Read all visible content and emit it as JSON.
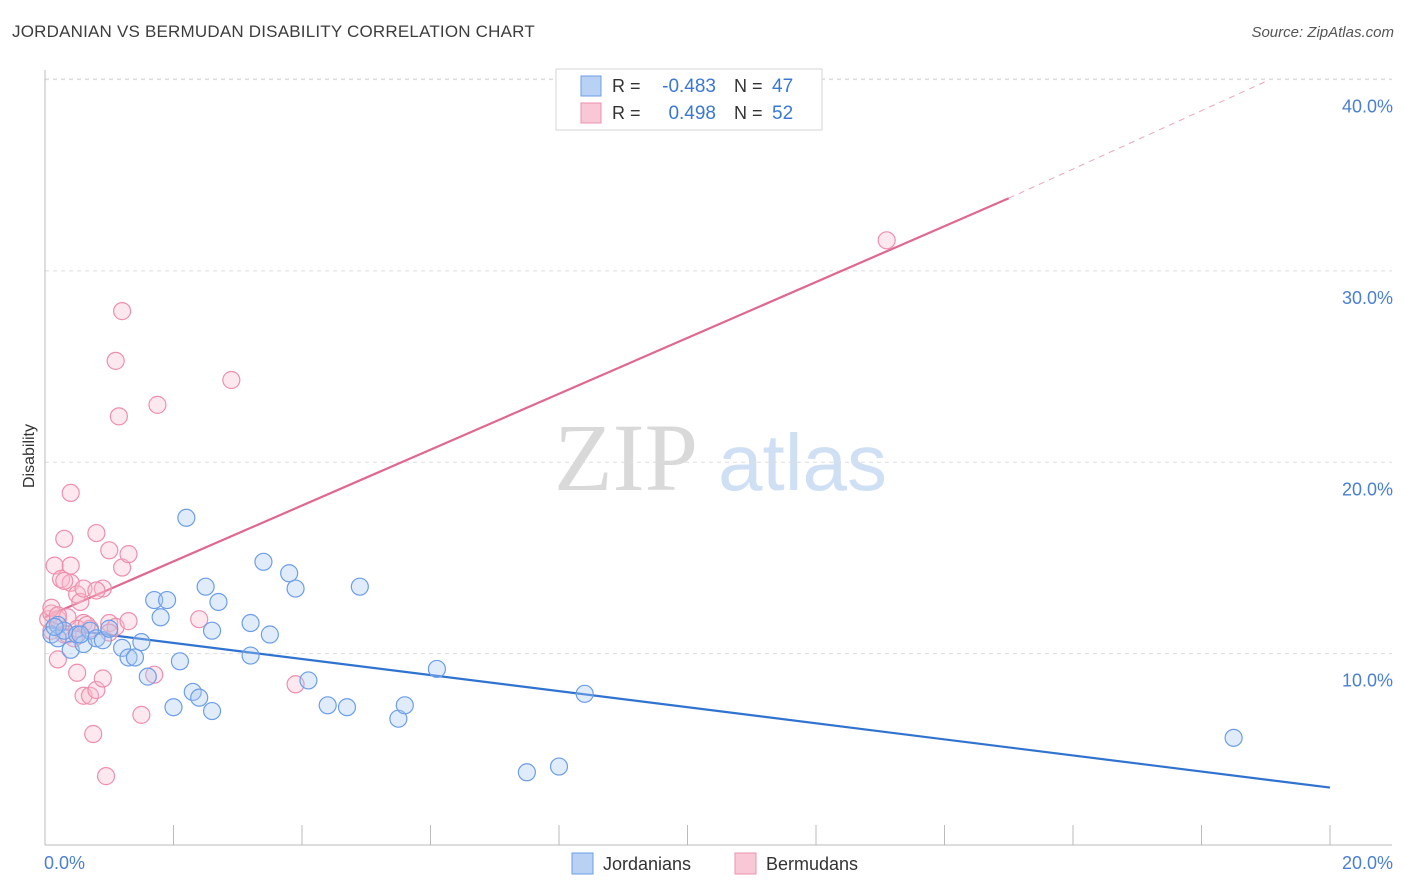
{
  "title": "JORDANIAN VS BERMUDAN DISABILITY CORRELATION CHART",
  "source": "Source: ZipAtlas.com",
  "watermark": {
    "zip": "ZIP",
    "atlas": "atlas"
  },
  "colors": {
    "blue": "#6c9ee8",
    "blue_fill": "#aac8f2",
    "blue_line": "#2f72d0",
    "pink": "#ee8fad",
    "pink_fill": "#f6bccd",
    "pink_line": "#e0688f",
    "axis_text": "#4a7fd1",
    "grid": "#dddddd"
  },
  "legend": {
    "rows": [
      {
        "r_label": "R = ",
        "r_value": "-0.483",
        "n_label": "N = ",
        "n_value": "47"
      },
      {
        "r_label": "R = ",
        "r_value": "0.498",
        "n_label": "N = ",
        "n_value": "52"
      }
    ]
  },
  "bottom_legend": [
    "Jordanians",
    "Bermudans"
  ],
  "chart_data": {
    "type": "scatter",
    "title": "JORDANIAN VS BERMUDAN DISABILITY CORRELATION CHART",
    "xlabel": "",
    "ylabel": "Disability",
    "xlim": [
      0,
      20
    ],
    "ylim": [
      0,
      40.5
    ],
    "x_tick_labels": [
      "0.0%",
      "20.0%"
    ],
    "y_ticks": [
      10,
      20,
      30,
      40
    ],
    "y_tick_labels": [
      "10.0%",
      "20.0%",
      "30.0%",
      "40.0%"
    ],
    "series": [
      {
        "name": "Jordanians",
        "r": -0.483,
        "n": 47,
        "trend": {
          "x0": 0,
          "y0": 11.4,
          "x1": 20,
          "y1": 3.0
        },
        "points": [
          [
            0.1,
            11.0
          ],
          [
            0.2,
            11.5
          ],
          [
            0.2,
            10.8
          ],
          [
            0.3,
            11.2
          ],
          [
            0.4,
            10.2
          ],
          [
            0.5,
            11.0
          ],
          [
            0.6,
            10.5
          ],
          [
            0.7,
            11.2
          ],
          [
            0.8,
            10.8
          ],
          [
            0.9,
            10.7
          ],
          [
            1.0,
            11.3
          ],
          [
            1.2,
            10.3
          ],
          [
            1.3,
            9.8
          ],
          [
            1.5,
            10.6
          ],
          [
            1.6,
            8.8
          ],
          [
            1.7,
            12.8
          ],
          [
            1.8,
            11.9
          ],
          [
            1.9,
            12.8
          ],
          [
            2.0,
            7.2
          ],
          [
            2.1,
            9.6
          ],
          [
            2.2,
            17.1
          ],
          [
            2.3,
            8.0
          ],
          [
            2.4,
            7.7
          ],
          [
            2.5,
            13.5
          ],
          [
            2.6,
            7.0
          ],
          [
            2.6,
            11.2
          ],
          [
            2.7,
            12.7
          ],
          [
            3.2,
            11.6
          ],
          [
            3.2,
            9.9
          ],
          [
            3.4,
            14.8
          ],
          [
            3.5,
            11.0
          ],
          [
            3.8,
            14.2
          ],
          [
            3.9,
            13.4
          ],
          [
            4.1,
            8.6
          ],
          [
            4.4,
            7.3
          ],
          [
            4.7,
            7.2
          ],
          [
            4.9,
            13.5
          ],
          [
            5.5,
            6.6
          ],
          [
            5.6,
            7.3
          ],
          [
            6.1,
            9.2
          ],
          [
            7.5,
            3.8
          ],
          [
            8.0,
            4.1
          ],
          [
            8.4,
            7.9
          ],
          [
            18.5,
            5.6
          ],
          [
            0.15,
            11.4
          ],
          [
            0.55,
            11.0
          ],
          [
            1.4,
            9.8
          ]
        ]
      },
      {
        "name": "Bermudans",
        "r": 0.498,
        "n": 52,
        "trend": {
          "x0": 0,
          "y0": 11.9,
          "x1": 15.0,
          "y1": 33.8,
          "dash_x1": 19.0,
          "dash_y1": 39.9
        },
        "points": [
          [
            0.05,
            11.8
          ],
          [
            0.1,
            12.1
          ],
          [
            0.1,
            11.2
          ],
          [
            0.15,
            14.6
          ],
          [
            0.2,
            11.8
          ],
          [
            0.2,
            9.7
          ],
          [
            0.25,
            13.9
          ],
          [
            0.3,
            16.0
          ],
          [
            0.3,
            11.0
          ],
          [
            0.35,
            11.9
          ],
          [
            0.4,
            13.7
          ],
          [
            0.4,
            14.6
          ],
          [
            0.45,
            10.8
          ],
          [
            0.5,
            9.0
          ],
          [
            0.5,
            13.1
          ],
          [
            0.55,
            12.7
          ],
          [
            0.6,
            7.8
          ],
          [
            0.6,
            11.6
          ],
          [
            0.6,
            13.4
          ],
          [
            0.7,
            11.3
          ],
          [
            0.7,
            7.8
          ],
          [
            0.75,
            5.8
          ],
          [
            0.8,
            8.1
          ],
          [
            0.8,
            16.3
          ],
          [
            0.9,
            8.7
          ],
          [
            0.9,
            13.4
          ],
          [
            0.95,
            3.6
          ],
          [
            1.0,
            11.6
          ],
          [
            1.0,
            15.4
          ],
          [
            1.1,
            11.4
          ],
          [
            1.1,
            25.3
          ],
          [
            1.15,
            22.4
          ],
          [
            1.2,
            14.5
          ],
          [
            1.2,
            27.9
          ],
          [
            1.3,
            15.2
          ],
          [
            1.3,
            11.7
          ],
          [
            1.5,
            6.8
          ],
          [
            1.7,
            8.9
          ],
          [
            1.75,
            23.0
          ],
          [
            2.4,
            11.8
          ],
          [
            2.9,
            24.3
          ],
          [
            3.9,
            8.4
          ],
          [
            0.4,
            18.4
          ],
          [
            0.3,
            13.8
          ],
          [
            0.1,
            12.4
          ],
          [
            0.2,
            12.0
          ],
          [
            0.35,
            11.0
          ],
          [
            0.5,
            11.3
          ],
          [
            0.65,
            11.5
          ],
          [
            0.8,
            13.3
          ],
          [
            1.0,
            11.1
          ],
          [
            13.1,
            31.6
          ]
        ]
      }
    ]
  }
}
